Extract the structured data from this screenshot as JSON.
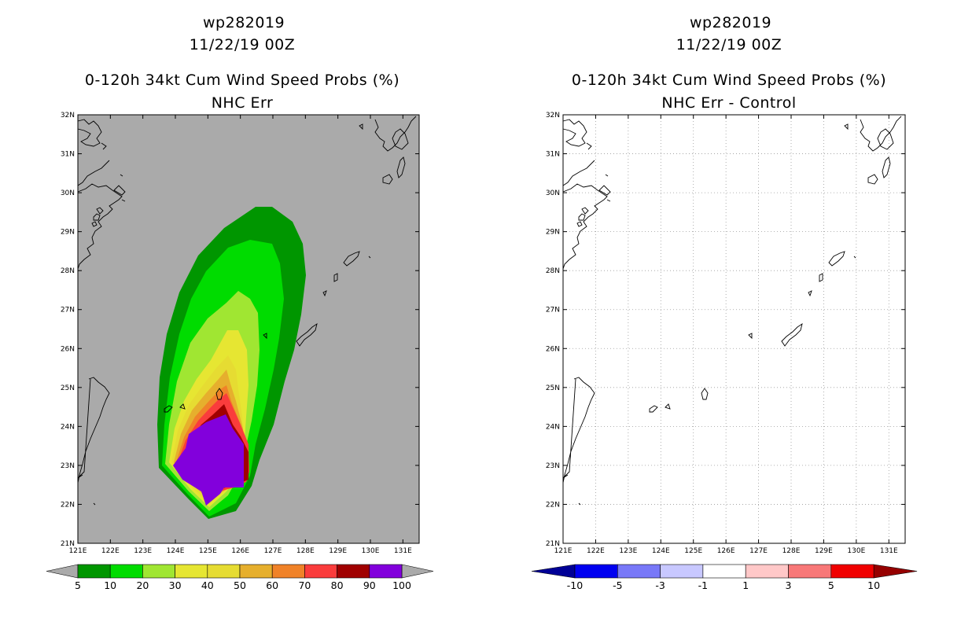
{
  "left": {
    "title_storm": "wp282019",
    "title_date": "11/22/19 00Z",
    "title_product": "0-120h 34kt Cum Wind Speed Probs (%)",
    "title_subtitle": "NHC Err",
    "colorbar_labels": [
      "5",
      "10",
      "20",
      "30",
      "40",
      "50",
      "60",
      "70",
      "80",
      "90",
      "100"
    ],
    "colorbar_colors": [
      "#009600",
      "#00dc00",
      "#a0e632",
      "#e6e632",
      "#e6dc32",
      "#e6af2d",
      "#f08228",
      "#fa3c3c",
      "#a00000",
      "#8200dc"
    ]
  },
  "right": {
    "title_storm": "wp282019",
    "title_date": "11/22/19 00Z",
    "title_product": "0-120h 34kt Cum Wind Speed Probs (%)",
    "title_subtitle": "NHC Err - Control",
    "colorbar_labels": [
      "-10",
      "-5",
      "-3",
      "-1",
      "1",
      "3",
      "5",
      "10"
    ],
    "colorbar_colors": [
      "#0000f0",
      "#7878f8",
      "#c8c8ff",
      "#ffffff",
      "#ffc8c8",
      "#f87878",
      "#f00000"
    ]
  },
  "axes": {
    "lat_labels": [
      "21N",
      "22N",
      "23N",
      "24N",
      "25N",
      "26N",
      "27N",
      "28N",
      "29N",
      "30N",
      "31N",
      "32N"
    ],
    "lon_labels": [
      "121E",
      "122E",
      "123E",
      "124E",
      "125E",
      "126E",
      "127E",
      "128E",
      "129E",
      "130E",
      "131E"
    ]
  },
  "colors": {
    "background_field": "#aaaaaa",
    "coast": "#000000"
  }
}
